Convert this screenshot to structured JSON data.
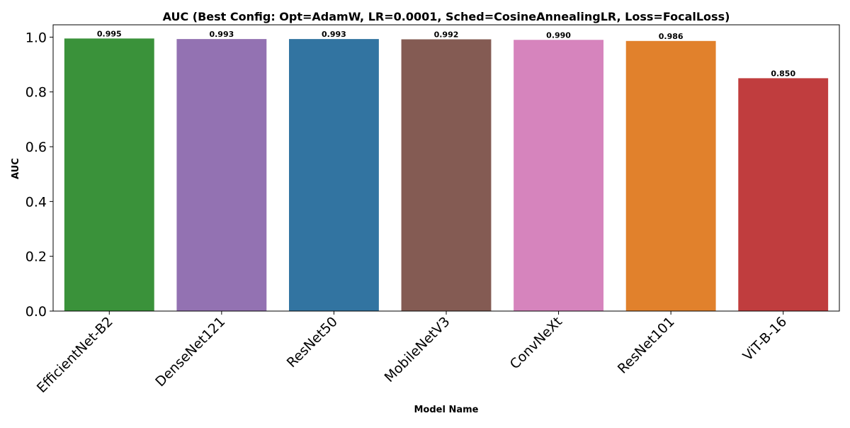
{
  "chart_data": {
    "type": "bar",
    "title": "AUC (Best Config: Opt=AdamW, LR=0.0001, Sched=CosineAnnealingLR, Loss=FocalLoss)",
    "xlabel": "Model Name",
    "ylabel": "AUC",
    "categories": [
      "EfficientNet-B2",
      "DenseNet121",
      "ResNet50",
      "MobileNetV3",
      "ConvNeXt",
      "ResNet101",
      "ViT-B-16"
    ],
    "values": [
      0.995,
      0.993,
      0.993,
      0.992,
      0.99,
      0.986,
      0.85
    ],
    "value_labels": [
      "0.995",
      "0.993",
      "0.993",
      "0.992",
      "0.990",
      "0.986",
      "0.850"
    ],
    "colors": [
      "#3a923a",
      "#9372b2",
      "#3274a1",
      "#845b53",
      "#d684bd",
      "#e1812c",
      "#c03d3e"
    ],
    "ylim": [
      0,
      1.045
    ],
    "yticks": [
      0.0,
      0.2,
      0.4,
      0.6,
      0.8,
      1.0
    ],
    "ytick_labels": [
      "0.0",
      "0.2",
      "0.4",
      "0.6",
      "0.8",
      "1.0"
    ],
    "grid": false,
    "legend": "none"
  }
}
